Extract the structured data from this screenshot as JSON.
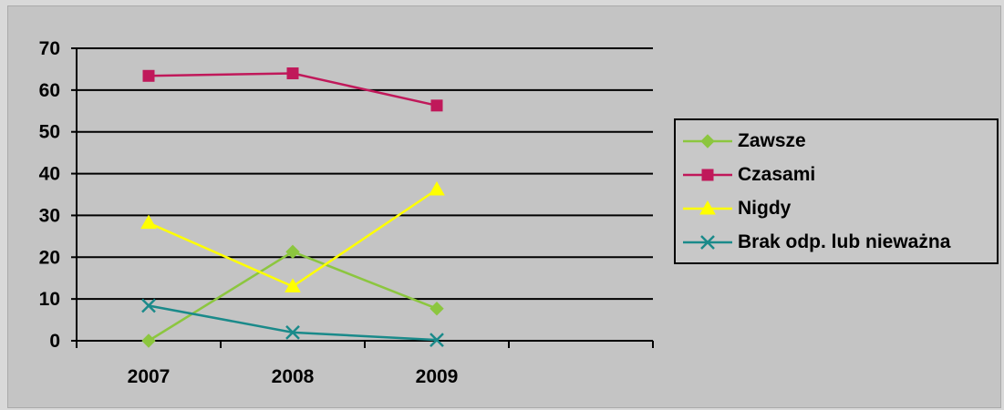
{
  "chart_data": {
    "type": "line",
    "categories": [
      "2007",
      "2008",
      "2009"
    ],
    "ylim": [
      0,
      70
    ],
    "yticks": [
      0,
      10,
      20,
      30,
      40,
      50,
      60,
      70
    ],
    "grid": true,
    "legend_position": "right",
    "series": [
      {
        "name": "Zawsze",
        "values": [
          0,
          21.3,
          7.7
        ],
        "color": "#8cc63f",
        "marker": "diamond"
      },
      {
        "name": "Czasami",
        "values": [
          63.4,
          64,
          56.3
        ],
        "color": "#c0185a",
        "marker": "square"
      },
      {
        "name": "Nigdy",
        "values": [
          28.2,
          13,
          36.2
        ],
        "color": "#ffff00",
        "marker": "triangle"
      },
      {
        "name": "Brak odp. lub nieważna",
        "values": [
          8.4,
          2,
          0.2
        ],
        "color": "#1a8a8a",
        "marker": "x"
      }
    ]
  }
}
